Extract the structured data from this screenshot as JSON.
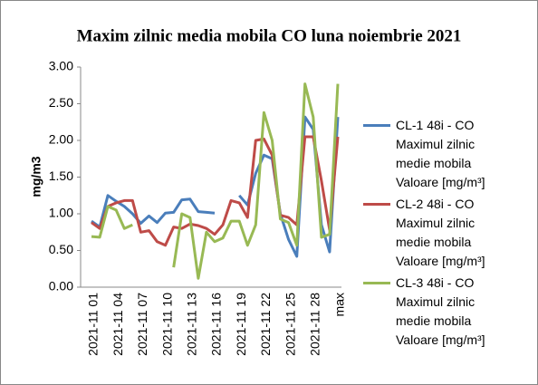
{
  "chart_data": {
    "type": "line",
    "title": "Maxim zilnic media mobila CO luna noiembrie 2021",
    "y_label": "mg/m3",
    "categories": [
      "2021-11 01",
      null,
      null,
      "2021-11 04",
      null,
      null,
      "2021-11 07",
      null,
      null,
      "2021-11 10",
      null,
      null,
      "2021-11 13",
      null,
      null,
      "2021-11 16",
      null,
      null,
      "2021-11 19",
      null,
      null,
      "2021-11 22",
      null,
      null,
      "2021-11 25",
      null,
      null,
      "2021-11 28",
      null,
      null,
      "max"
    ],
    "ylim": [
      0,
      3
    ],
    "yticks": [
      {
        "value": 0,
        "label": "0.00"
      },
      {
        "value": 0.5,
        "label": "0.50"
      },
      {
        "value": 1,
        "label": "1.00"
      },
      {
        "value": 1.5,
        "label": "1.50"
      },
      {
        "value": 2,
        "label": "2.00"
      },
      {
        "value": 2.5,
        "label": "2.50"
      },
      {
        "value": 3,
        "label": "3.00"
      }
    ],
    "series": [
      {
        "name": "CL-1 48i - CO Maximul zilnic medie mobila Valoare [mg/m³]",
        "color": "#4a7ebb",
        "values": [
          0.9,
          0.82,
          1.25,
          1.17,
          1.1,
          1.0,
          0.87,
          0.97,
          0.88,
          1.01,
          1.02,
          1.19,
          1.2,
          1.03,
          1.02,
          1.01,
          null,
          null,
          1.25,
          1.12,
          1.55,
          1.8,
          1.75,
          1.0,
          0.65,
          0.42,
          2.32,
          2.15,
          0.85,
          0.48,
          2.32
        ]
      },
      {
        "name": "CL-2 48i - CO Maximul zilnic medie mobila Valoare [mg/m³]",
        "color": "#be4b48",
        "values": [
          0.88,
          0.8,
          1.1,
          1.15,
          1.18,
          1.18,
          0.75,
          0.77,
          0.62,
          0.57,
          0.82,
          0.8,
          0.86,
          0.84,
          0.8,
          0.72,
          0.85,
          1.18,
          1.15,
          0.95,
          2.0,
          2.02,
          1.8,
          0.98,
          0.95,
          0.85,
          2.05,
          2.05,
          1.45,
          0.78,
          2.05
        ]
      },
      {
        "name": "CL-3 48i - CO Maximul zilnic medie mobila Valoare [mg/m³]",
        "color": "#98b954",
        "values": [
          0.69,
          0.68,
          1.1,
          1.05,
          0.8,
          0.85,
          null,
          null,
          null,
          null,
          0.27,
          1.0,
          0.95,
          0.12,
          0.75,
          0.62,
          0.67,
          0.9,
          0.9,
          0.57,
          0.85,
          2.38,
          2.0,
          0.93,
          0.88,
          0.57,
          2.77,
          2.32,
          0.68,
          0.72,
          2.77
        ]
      }
    ]
  }
}
